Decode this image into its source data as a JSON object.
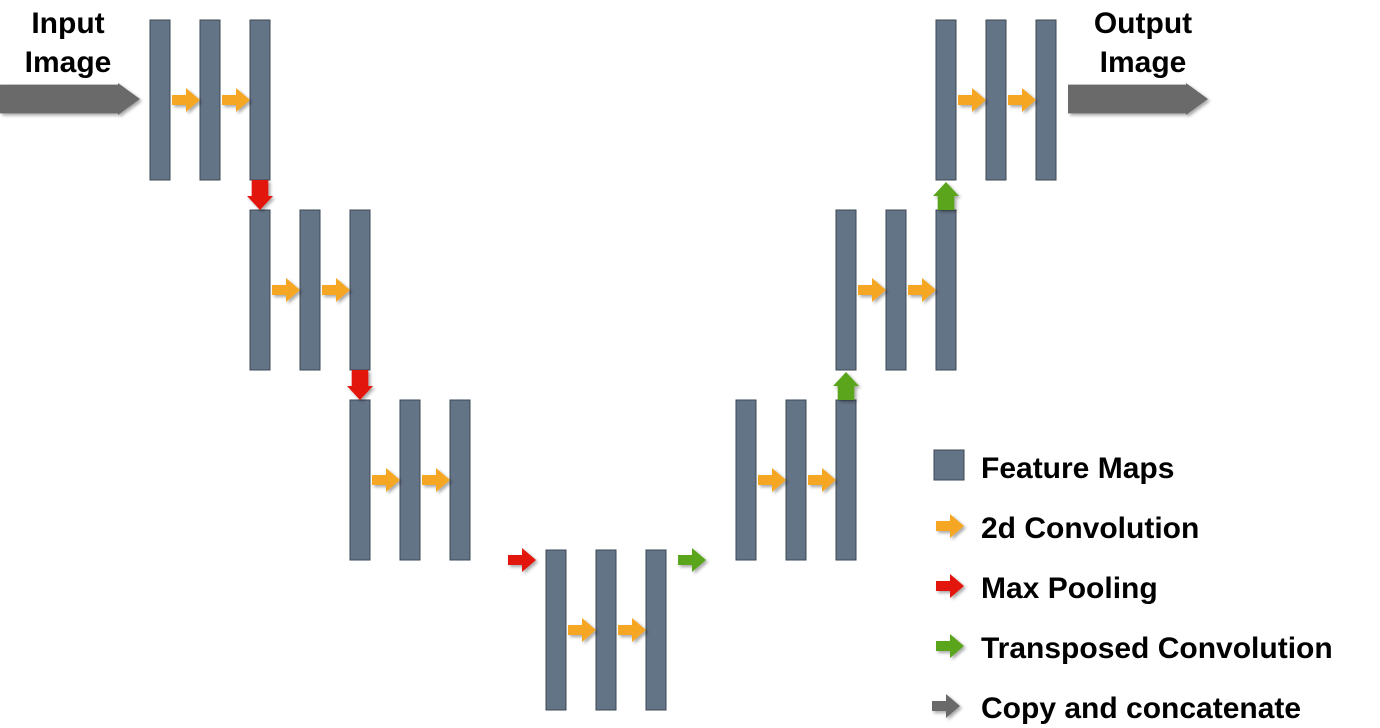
{
  "input_label": {
    "line1": "Input",
    "line2": "Image"
  },
  "output_label": {
    "line1": "Output",
    "line2": "Image"
  },
  "legend": [
    {
      "key": "feature",
      "label": "Feature Maps"
    },
    {
      "key": "conv",
      "label": "2d Convolution"
    },
    {
      "key": "pool",
      "label": "Max Pooling"
    },
    {
      "key": "tconv",
      "label": "Transposed Convolution"
    },
    {
      "key": "copy",
      "label": "Copy and concatenate"
    }
  ],
  "colors": {
    "feature_map": "#647487",
    "feature_map_border": "#3b4756",
    "convolution": "#f5a623",
    "max_pooling": "#e3180c",
    "transposed_convolution": "#5aa51e",
    "copy": "#6b6b6b"
  }
}
